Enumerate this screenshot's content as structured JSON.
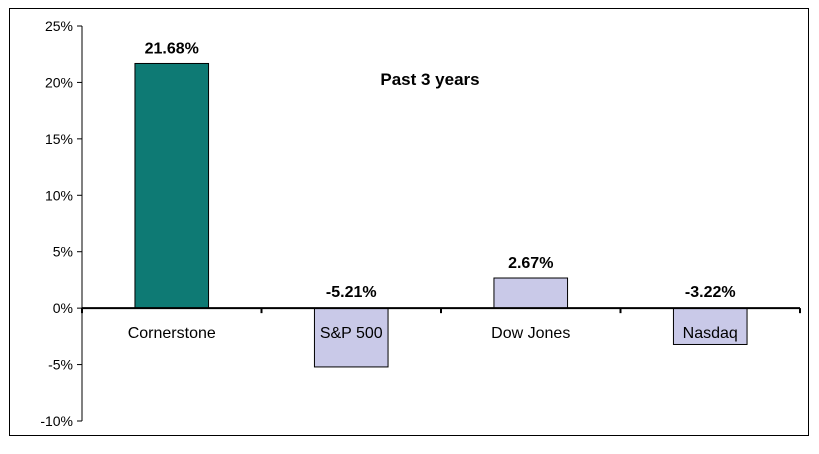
{
  "chart_data": {
    "type": "bar",
    "title": "Past 3 years",
    "categories": [
      "Cornerstone",
      "S&P 500",
      "Dow Jones",
      "Nasdaq"
    ],
    "values": [
      21.68,
      -5.21,
      2.67,
      -3.22
    ],
    "data_labels": [
      "21.68%",
      "-5.21%",
      "2.67%",
      "-3.22%"
    ],
    "ylim": [
      -10,
      25
    ],
    "yticks": [
      25,
      20,
      15,
      10,
      5,
      0,
      -5,
      -10
    ],
    "ytick_labels": [
      "25%",
      "20%",
      "15%",
      "10%",
      "5%",
      "0%",
      "-5%",
      "-10%"
    ],
    "xlabel": "",
    "ylabel": "",
    "grid": false,
    "bar_colors": [
      "#0e7a74",
      "#c9c9e8",
      "#c9c9e8",
      "#c9c9e8"
    ],
    "bar_edge_color": "#000000"
  }
}
